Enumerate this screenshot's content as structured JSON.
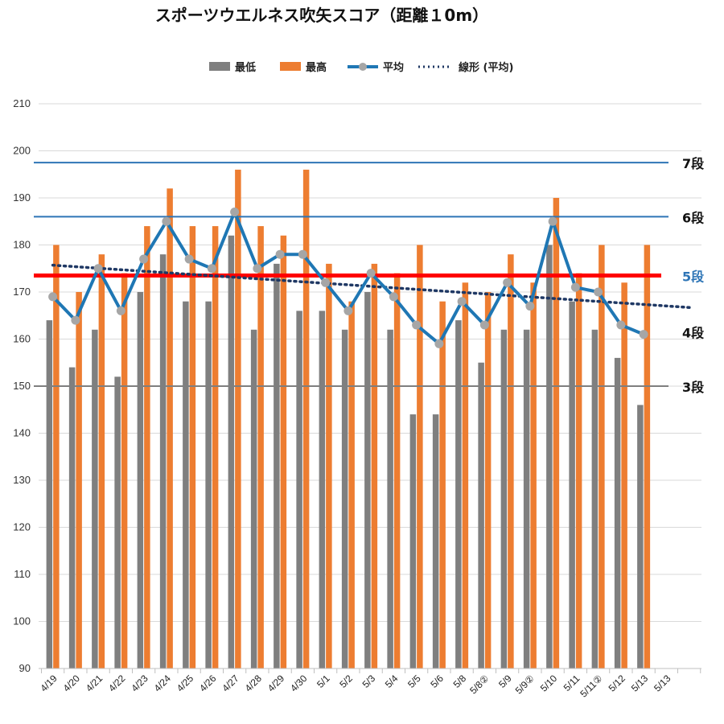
{
  "chart_data": {
    "type": "bar",
    "title": "スポーツウエルネス吹矢スコア（距離１0m）",
    "ylim": [
      90,
      210
    ],
    "y_ticks": [
      90,
      100,
      110,
      120,
      130,
      140,
      150,
      160,
      170,
      180,
      190,
      200,
      210
    ],
    "grid": true,
    "legend_position": "top",
    "legend": [
      "最低",
      "最高",
      "平均",
      "線形 (平均)"
    ],
    "categories": [
      "4/19",
      "4/20",
      "4/21",
      "4/22",
      "4/23",
      "4/24",
      "4/25",
      "4/26",
      "4/27",
      "4/28",
      "4/29",
      "4/30",
      "5/1",
      "5/2",
      "5/3",
      "5/4",
      "5/5",
      "5/6",
      "5/8",
      "5/8②",
      "5/9",
      "5/9②",
      "5/10",
      "5/11",
      "5/11②",
      "5/12",
      "5/13",
      "5/13"
    ],
    "series": [
      {
        "name": "最低",
        "type": "bar",
        "color": "#7f7f7f",
        "values": [
          164,
          154,
          162,
          152,
          170,
          178,
          168,
          168,
          182,
          162,
          176,
          166,
          166,
          162,
          170,
          162,
          144,
          144,
          164,
          155,
          162,
          162,
          180,
          168,
          162,
          156,
          146,
          null
        ]
      },
      {
        "name": "最高",
        "type": "bar",
        "color": "#ed7d31",
        "values": [
          180,
          170,
          178,
          174,
          184,
          192,
          184,
          184,
          196,
          184,
          182,
          196,
          176,
          168,
          176,
          174,
          180,
          168,
          172,
          170,
          178,
          172,
          190,
          174,
          180,
          172,
          180,
          null
        ]
      },
      {
        "name": "平均",
        "type": "line",
        "color": "#1f77b4",
        "marker_color": "#a6a6a6",
        "values": [
          169,
          164,
          175,
          166,
          177,
          185,
          177,
          175,
          187,
          175,
          178,
          178,
          172,
          166,
          174,
          169,
          163,
          159,
          168,
          163,
          172,
          167,
          185,
          171,
          170,
          163,
          161,
          null
        ]
      },
      {
        "name": "線形 (平均)",
        "type": "trendline",
        "color": "#1f3864",
        "from": 175.7,
        "to": 166.7
      }
    ],
    "reference_lines": [
      {
        "value": 197.5,
        "label": "7段",
        "color": "#2e75b6",
        "label_color": "#111111"
      },
      {
        "value": 186,
        "label": "6段",
        "color": "#2e75b6",
        "label_color": "#111111"
      },
      {
        "value": 173.5,
        "label": "5段",
        "color": "#ff0000",
        "label_color": "#2e75b6"
      },
      {
        "value": 150,
        "label": "3段",
        "color": "#7f7f7f",
        "label_color": "#111111"
      }
    ],
    "side_labels": [
      {
        "value": 161.5,
        "label": "4段",
        "color": "#111111"
      }
    ]
  }
}
